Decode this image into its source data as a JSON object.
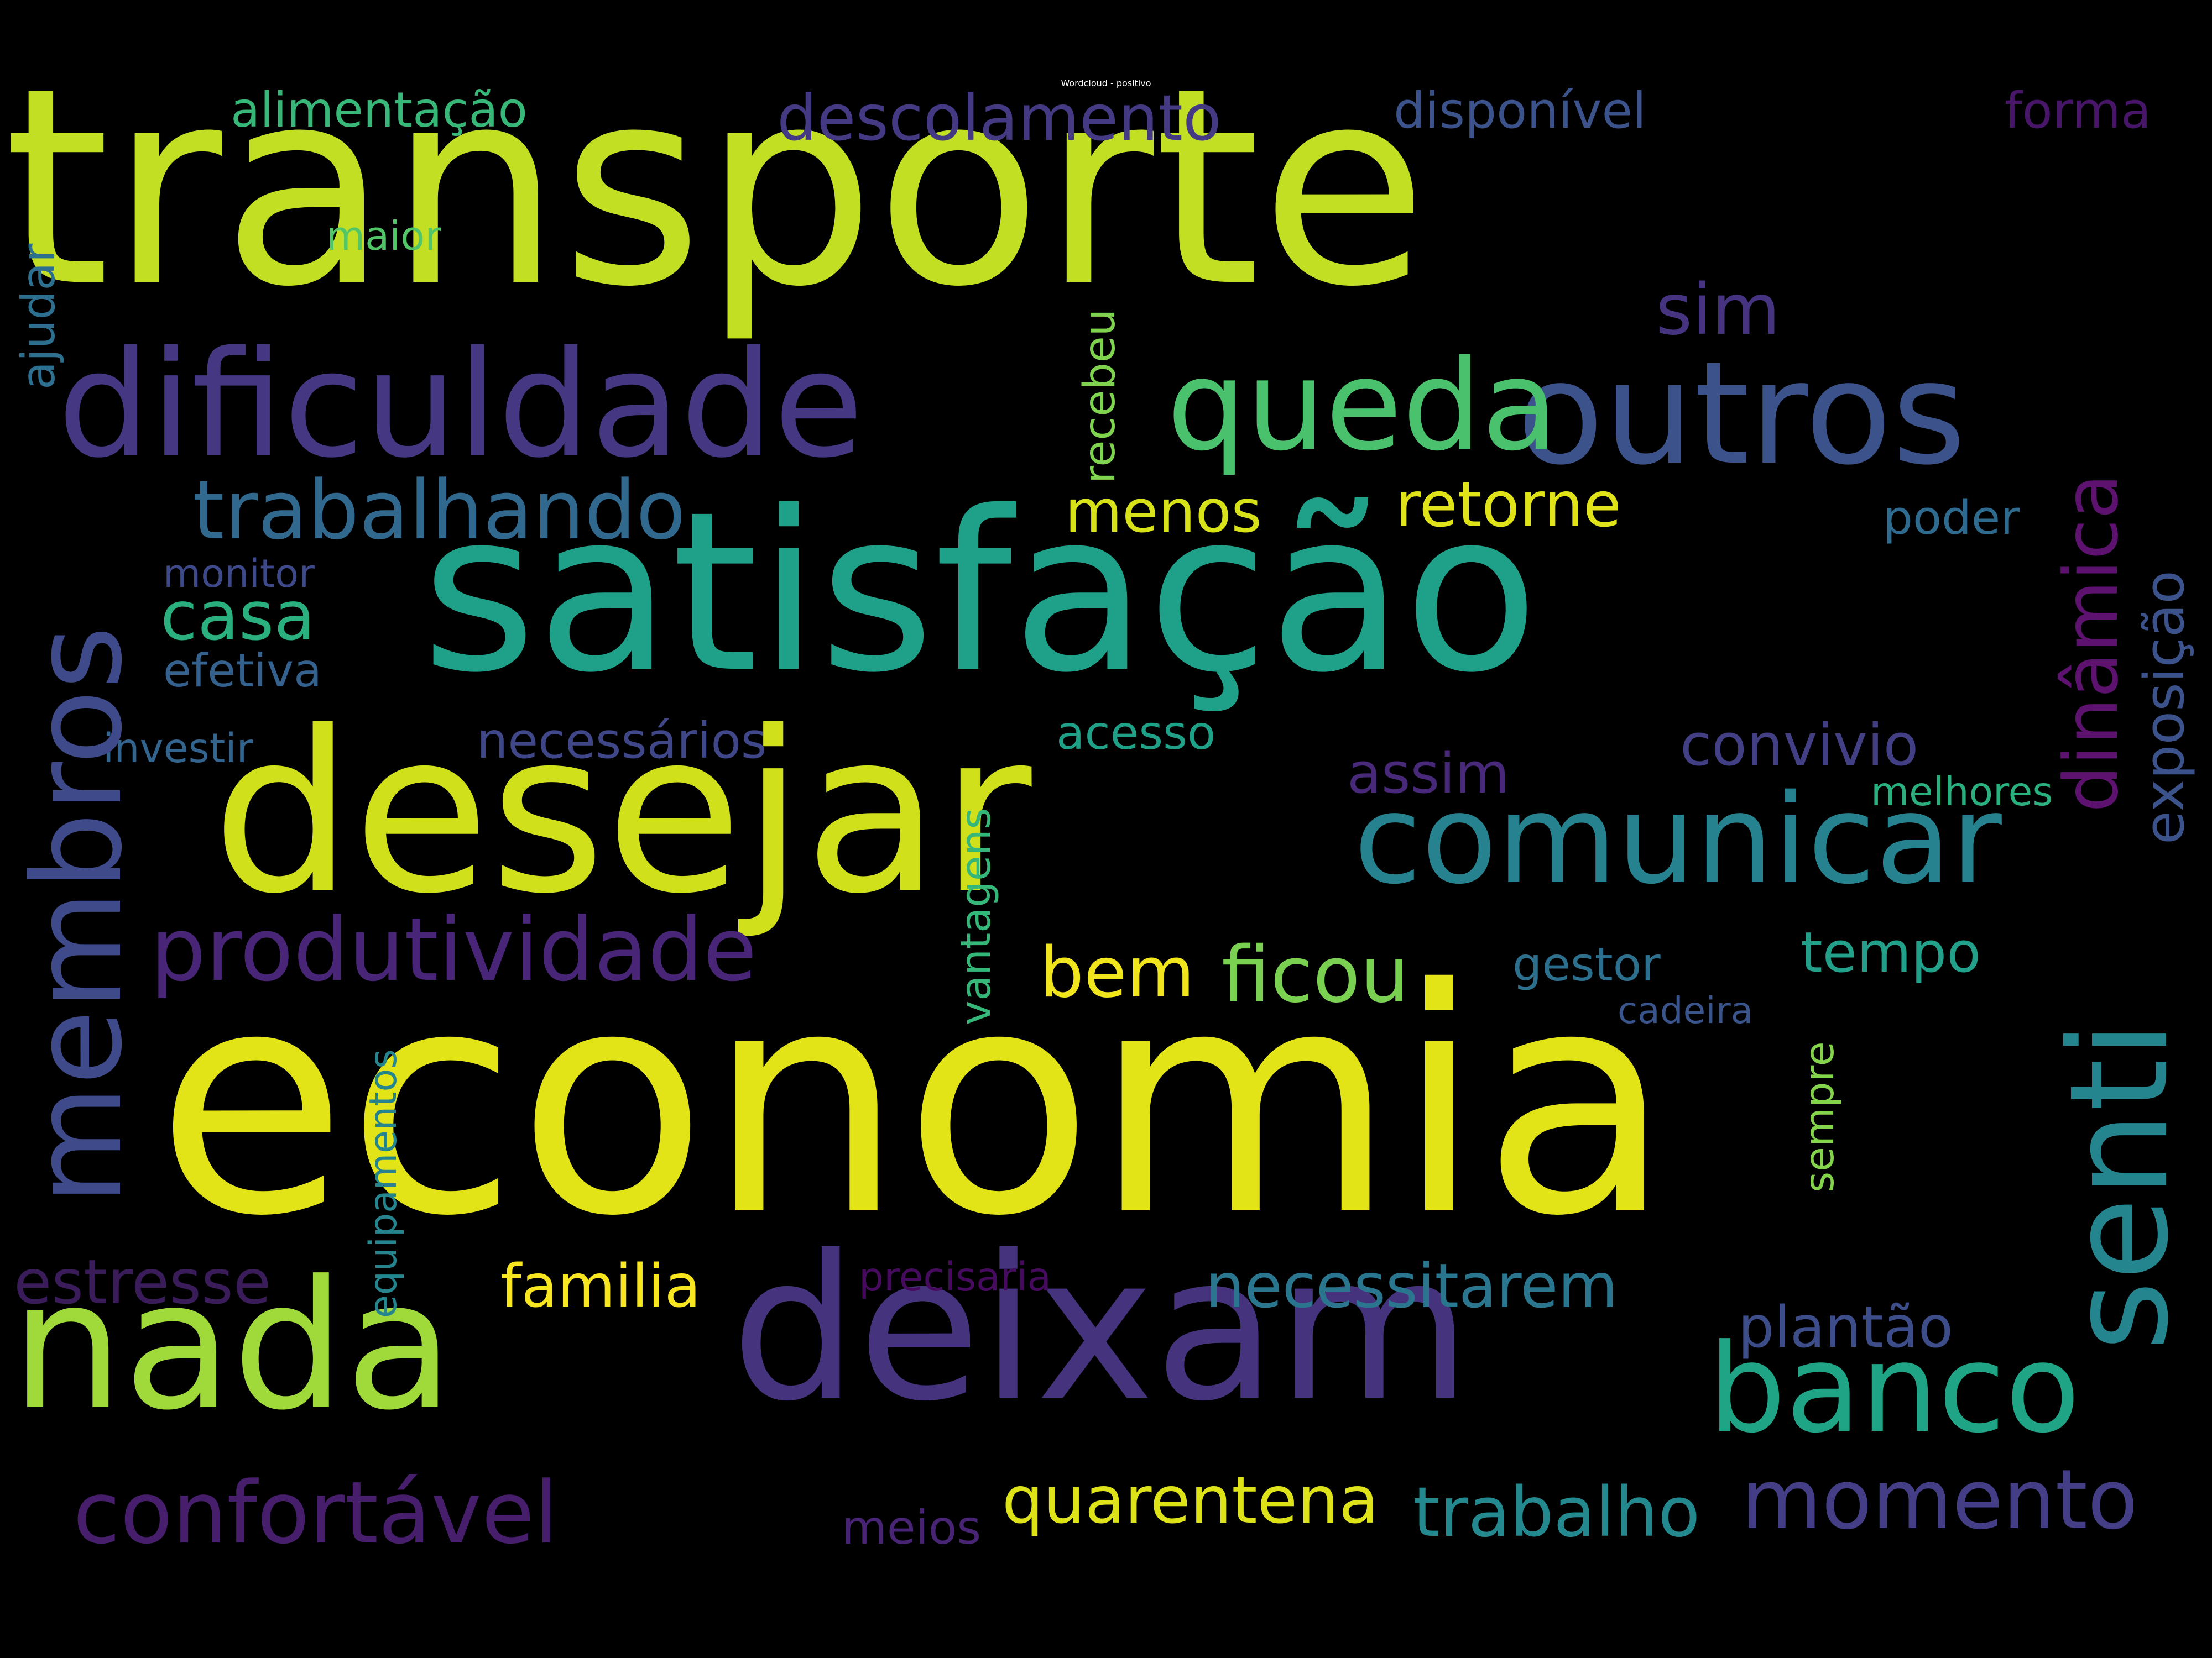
{
  "title": "Wordcloud - positivo",
  "words": {
    "transporte": {
      "text": "transporte",
      "color": "#c2df23"
    },
    "economia": {
      "text": "economia",
      "color": "#e2e418"
    },
    "satisfacao": {
      "text": "satisfação",
      "color": "#1fa088"
    },
    "desejar": {
      "text": "desejar",
      "color": "#d0e11c"
    },
    "deixam": {
      "text": "deixam",
      "color": "#46337e"
    },
    "nada": {
      "text": "nada",
      "color": "#9fda3a"
    },
    "dificuldade": {
      "text": "dificuldade",
      "color": "#453781"
    },
    "outros": {
      "text": "outros",
      "color": "#3b528b"
    },
    "queda": {
      "text": "queda",
      "color": "#4ac16d"
    },
    "membros": {
      "text": "membros",
      "color": "#3e4a89"
    },
    "comunicar": {
      "text": "comunicar",
      "color": "#26828e"
    },
    "senti": {
      "text": "senti",
      "color": "#25858e"
    },
    "banco": {
      "text": "banco",
      "color": "#20a486"
    },
    "produtividade": {
      "text": "produtividade",
      "color": "#482576"
    },
    "confortavel": {
      "text": "confortável",
      "color": "#471e6b"
    },
    "momento": {
      "text": "momento",
      "color": "#433e85"
    },
    "trabalho": {
      "text": "trabalho",
      "color": "#23898e"
    },
    "quarentena": {
      "text": "quarentena",
      "color": "#dde318"
    },
    "necessitarem": {
      "text": "necessitarem",
      "color": "#2a768e"
    },
    "trabalhando": {
      "text": "trabalhando",
      "color": "#31688e"
    },
    "descolamento": {
      "text": "descolamento",
      "color": "#443a83"
    },
    "ficou": {
      "text": "ficou",
      "color": "#7ad151"
    },
    "bem": {
      "text": "bem",
      "color": "#f1e51d"
    },
    "dinamica": {
      "text": "dinâmica",
      "color": "#5c126e"
    },
    "sim": {
      "text": "sim",
      "color": "#463480"
    },
    "casa": {
      "text": "casa",
      "color": "#2ab07f"
    },
    "retorne": {
      "text": "retorne",
      "color": "#dfe318"
    },
    "menos": {
      "text": "menos",
      "color": "#d8e219"
    },
    "familia": {
      "text": "familia",
      "color": "#f8e621"
    },
    "estresse": {
      "text": "estresse",
      "color": "#3b1c5a"
    },
    "convivio": {
      "text": "convivio",
      "color": "#423f85"
    },
    "assim": {
      "text": "assim",
      "color": "#482979"
    },
    "plantao": {
      "text": "plantão",
      "color": "#3d4d8a"
    },
    "exposicao": {
      "text": "exposição",
      "color": "#3b528b"
    },
    "alimentacao": {
      "text": "alimentação",
      "color": "#37b878"
    },
    "disponivel": {
      "text": "disponível",
      "color": "#3b528b"
    },
    "forma": {
      "text": "forma",
      "color": "#481668"
    },
    "tempo": {
      "text": "tempo",
      "color": "#23a08a"
    },
    "vantagens": {
      "text": "vantagens",
      "color": "#35b779"
    },
    "recebeu": {
      "text": "recebeu",
      "color": "#7fd34e"
    },
    "ajudar": {
      "text": "ajudar",
      "color": "#2d6f8e"
    },
    "necessarios": {
      "text": "necessários",
      "color": "#3f4788"
    },
    "acesso": {
      "text": "acesso",
      "color": "#1fa187"
    },
    "gestor": {
      "text": "gestor",
      "color": "#2d708e"
    },
    "poder": {
      "text": "poder",
      "color": "#2f6b8e"
    },
    "monitor": {
      "text": "monitor",
      "color": "#3e4989"
    },
    "efetiva": {
      "text": "efetiva",
      "color": "#34618d"
    },
    "investir": {
      "text": "investir",
      "color": "#32648e"
    },
    "maior": {
      "text": "maior",
      "color": "#52c569"
    },
    "melhores": {
      "text": "melhores",
      "color": "#2ab07f"
    },
    "cadeira": {
      "text": "cadeira",
      "color": "#3a548c"
    },
    "sempre": {
      "text": "sempre",
      "color": "#84d44b"
    },
    "equipamentos": {
      "text": "equipamentos",
      "color": "#25858e"
    },
    "precisaria": {
      "text": "precisaria",
      "color": "#460b5e"
    },
    "meios": {
      "text": "meios",
      "color": "#482475"
    }
  }
}
